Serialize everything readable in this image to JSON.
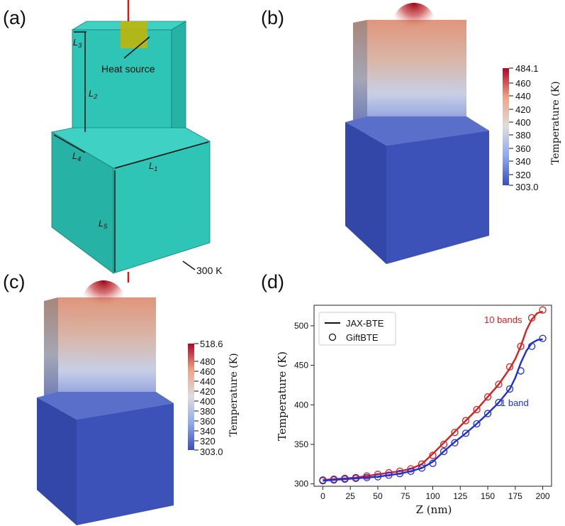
{
  "panels": {
    "a": {
      "label": "(a)",
      "heat_source_label": "Heat source",
      "boundary_label": "300 K",
      "dim_labels": {
        "L1": "L",
        "L1_sub": "1",
        "L2": "L",
        "L2_sub": "2",
        "L3": "L",
        "L3_sub": "3",
        "L4": "L",
        "L4_sub": "4",
        "L5": "L",
        "L5_sub": "5"
      },
      "colors": {
        "block": "#2ec4b6",
        "block_top": "#3fd1c4",
        "block_side": "#26b3a6",
        "heat_source": "#c8b400",
        "probe": "#d41818"
      }
    },
    "b": {
      "label": "(b)",
      "colorbar": {
        "title": "Temperature (K)",
        "max": "484.1",
        "min": "303.0",
        "ticks": [
          "460",
          "440",
          "420",
          "400",
          "380",
          "360",
          "340",
          "320"
        ]
      }
    },
    "c": {
      "label": "(c)",
      "colorbar": {
        "title": "Temperature (K)",
        "max": "518.6",
        "min": "303.0",
        "ticks": [
          "480",
          "460",
          "440",
          "420",
          "400",
          "380",
          "360",
          "340",
          "320"
        ]
      }
    },
    "d": {
      "label": "(d)",
      "annotations": {
        "ten_bands": "10 bands",
        "one_band": "1 band"
      }
    }
  },
  "chart_data": {
    "type": "line",
    "xlabel": "Z (nm)",
    "ylabel": "Temperature (K)",
    "xlim": [
      -8,
      208
    ],
    "ylim": [
      297,
      526
    ],
    "x_ticks": [
      0,
      25,
      50,
      75,
      100,
      125,
      150,
      175,
      200
    ],
    "y_ticks": [
      300,
      350,
      400,
      450,
      500
    ],
    "legend": {
      "placement": "top-left",
      "entries": [
        "JAX-BTE",
        "GiftBTE"
      ]
    },
    "series": [
      {
        "name": "JAX-BTE",
        "group": "10 bands",
        "style": "line",
        "color": "#d62020",
        "x": [
          0,
          10,
          20,
          30,
          40,
          50,
          60,
          70,
          80,
          90,
          100,
          110,
          120,
          130,
          140,
          150,
          160,
          170,
          175,
          180,
          185,
          190,
          195,
          200
        ],
        "y": [
          305,
          306,
          307,
          308,
          310,
          312,
          314,
          316,
          319,
          325,
          338,
          352,
          366,
          380,
          394,
          410,
          426,
          446,
          458,
          474,
          494,
          508,
          516,
          518
        ]
      },
      {
        "name": "GiftBTE",
        "group": "10 bands",
        "style": "marker",
        "color": "#d62020",
        "x": [
          0,
          10,
          20,
          30,
          40,
          50,
          60,
          70,
          80,
          90,
          100,
          110,
          120,
          130,
          140,
          150,
          160,
          170,
          180,
          190,
          200
        ],
        "y": [
          305,
          306,
          307,
          308,
          310,
          312,
          314,
          316,
          319,
          325,
          336,
          350,
          365,
          380,
          394,
          410,
          426,
          448,
          474,
          510,
          520
        ]
      },
      {
        "name": "JAX-BTE",
        "group": "1 band",
        "style": "line",
        "color": "#1f2fd0",
        "x": [
          0,
          10,
          20,
          30,
          40,
          50,
          60,
          70,
          80,
          90,
          100,
          110,
          120,
          130,
          140,
          150,
          160,
          170,
          175,
          180,
          185,
          190,
          195,
          200
        ],
        "y": [
          304,
          305,
          306,
          307,
          308,
          309,
          311,
          313,
          316,
          320,
          328,
          341,
          353,
          364,
          376,
          389,
          403,
          420,
          434,
          453,
          468,
          478,
          482,
          483
        ]
      },
      {
        "name": "GiftBTE",
        "group": "1 band",
        "style": "marker",
        "color": "#1f2fd0",
        "x": [
          0,
          10,
          20,
          30,
          40,
          50,
          60,
          70,
          80,
          90,
          100,
          110,
          120,
          130,
          140,
          150,
          160,
          170,
          180,
          190,
          200
        ],
        "y": [
          304,
          305,
          306,
          307,
          308,
          309,
          311,
          313,
          316,
          320,
          326,
          341,
          352,
          364,
          376,
          389,
          403,
          420,
          443,
          474,
          484
        ]
      }
    ]
  }
}
